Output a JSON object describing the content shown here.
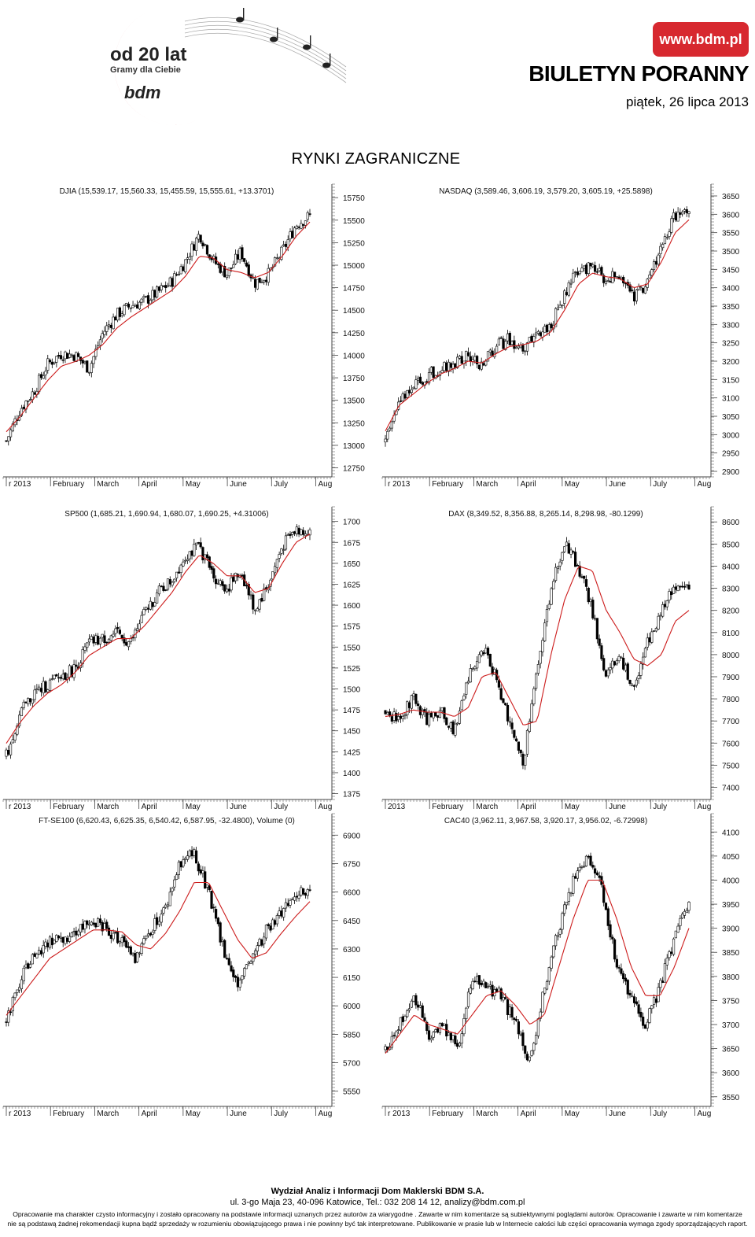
{
  "header": {
    "logo_main": "od 20 lat",
    "logo_tagline": "Gramy dla Ciebie",
    "logo_bdm": "bdm",
    "brand_url": "www.bdm.pl",
    "title": "BIULETYN PORANNY",
    "date": "piątek, 26 lipca 2013",
    "accent_color": "#d7282f"
  },
  "section_title": "RYNKI ZAGRANICZNE",
  "footer": {
    "org": "Wydział Analiz i Informacji Dom Maklerski BDM  S.A.",
    "address": "ul. 3-go Maja 23, 40-096 Katowice, Tel.: 032 208 14 12, analizy@bdm.com.pl",
    "disclaimer_1": "Opracowanie  ma charakter czysto informacyjny i zostało opracowany na podstawie informacji uznanych przez autorów za wiarygodne . Zawarte w nim komentarze są subiektywnymi poglądami autorów. Opracowanie i zawarte w nim komentarze",
    "disclaimer_2": "nie są podstawą żadnej rekomendacji kupna bądź sprzedaży w rozumieniu obowiązującego prawa i nie powinny być tak interpretowane. Publikowanie w prasie lub w Internecie całości lub części opracowania wymaga zgody sporządzających raport."
  },
  "chart_data": [
    {
      "type": "candlestick",
      "title": "DJIA (15,539.17, 15,560.33, 15,455.59, 15,555.61, +13.3701)",
      "months": [
        "r 2013",
        "February",
        "March",
        "April",
        "May",
        "June",
        "July",
        "Aug"
      ],
      "yticks": [
        15750,
        15500,
        15250,
        15000,
        14750,
        14500,
        14250,
        14000,
        13750,
        13500,
        13250,
        13000,
        12750
      ],
      "ylim": [
        12650,
        15830
      ],
      "series": [
        {
          "values": [
            13050,
            13400,
            13600,
            13900,
            14020,
            14000,
            13850,
            14250,
            14450,
            14550,
            14600,
            14700,
            14820,
            15050,
            15350,
            15050,
            14900,
            15150,
            14800,
            14900,
            15150,
            15450,
            15550
          ]
        },
        {
          "values": [
            13150,
            13320,
            13520,
            13720,
            13880,
            13930,
            14000,
            14120,
            14300,
            14420,
            14520,
            14620,
            14720,
            14880,
            15100,
            15080,
            14950,
            14920,
            14860,
            14920,
            15100,
            15320,
            15480
          ]
        }
      ]
    },
    {
      "type": "candlestick",
      "title": "NASDAQ (3,589.46, 3,606.19, 3,579.20, 3,605.19, +25.5898)",
      "months": [
        "r 2013",
        "February",
        "March",
        "April",
        "May",
        "June",
        "July",
        "Aug"
      ],
      "yticks": [
        3650,
        3600,
        3550,
        3500,
        3450,
        3400,
        3350,
        3300,
        3250,
        3200,
        3150,
        3100,
        3050,
        3000,
        2950,
        2900
      ],
      "ylim": [
        2885,
        3665
      ],
      "series": [
        {
          "values": [
            2980,
            3100,
            3130,
            3160,
            3180,
            3195,
            3215,
            3190,
            3240,
            3260,
            3230,
            3270,
            3300,
            3380,
            3450,
            3460,
            3420,
            3440,
            3370,
            3420,
            3510,
            3600,
            3605
          ]
        },
        {
          "values": [
            3010,
            3080,
            3110,
            3140,
            3165,
            3180,
            3200,
            3195,
            3220,
            3240,
            3245,
            3255,
            3280,
            3340,
            3410,
            3440,
            3430,
            3425,
            3400,
            3410,
            3470,
            3550,
            3585
          ]
        }
      ]
    },
    {
      "type": "candlestick",
      "title": "SP500 (1,685.21, 1,690.94, 1,680.07, 1,690.25, +4.31006)",
      "months": [
        "r 2013",
        "February",
        "March",
        "April",
        "May",
        "June",
        "July",
        "Aug"
      ],
      "yticks": [
        1700,
        1675,
        1650,
        1625,
        1600,
        1575,
        1550,
        1525,
        1500,
        1475,
        1450,
        1425,
        1400,
        1375
      ],
      "ylim": [
        1368,
        1710
      ],
      "series": [
        {
          "values": [
            1420,
            1470,
            1495,
            1505,
            1515,
            1525,
            1555,
            1560,
            1565,
            1555,
            1590,
            1615,
            1630,
            1660,
            1670,
            1635,
            1620,
            1640,
            1595,
            1625,
            1670,
            1690,
            1690
          ]
        },
        {
          "values": [
            1435,
            1460,
            1480,
            1495,
            1505,
            1520,
            1540,
            1550,
            1560,
            1560,
            1575,
            1595,
            1615,
            1640,
            1660,
            1650,
            1635,
            1635,
            1615,
            1620,
            1650,
            1675,
            1685
          ]
        }
      ]
    },
    {
      "type": "candlestick",
      "title": "DAX (8,349.52, 8,356.88, 8,265.14, 8,298.98, -80.1299)",
      "months": [
        "2013",
        "February",
        "March",
        "April",
        "May",
        "June",
        "July",
        "Aug"
      ],
      "yticks": [
        8600,
        8500,
        8400,
        8300,
        8200,
        8100,
        8000,
        7900,
        7800,
        7700,
        7600,
        7500,
        7400
      ],
      "ylim": [
        7345,
        8640
      ],
      "series": [
        {
          "values": [
            7750,
            7700,
            7800,
            7700,
            7750,
            7650,
            7900,
            8050,
            7900,
            7700,
            7500,
            7950,
            8300,
            8500,
            8400,
            8200,
            7900,
            8000,
            7850,
            8050,
            8200,
            8300,
            8300
          ]
        },
        {
          "values": [
            7720,
            7730,
            7750,
            7740,
            7740,
            7720,
            7760,
            7900,
            7920,
            7800,
            7680,
            7700,
            8000,
            8250,
            8400,
            8380,
            8200,
            8100,
            7980,
            7950,
            8000,
            8150,
            8200
          ]
        }
      ]
    },
    {
      "type": "candlestick",
      "title": "FT-SE100 (6,620.43, 6,625.35, 6,540.42, 6,587.95, -32.4800), Volume (0)",
      "months": [
        "r 2013",
        "February",
        "March",
        "April",
        "May",
        "June",
        "July",
        "Aug"
      ],
      "yticks": [
        6900,
        6750,
        6600,
        6450,
        6300,
        6150,
        6000,
        5850,
        5700,
        5550
      ],
      "ylim": [
        5470,
        6980
      ],
      "series": [
        {
          "values": [
            5920,
            6150,
            6280,
            6330,
            6360,
            6400,
            6450,
            6400,
            6350,
            6250,
            6400,
            6500,
            6750,
            6800,
            6600,
            6300,
            6100,
            6250,
            6400,
            6500,
            6600,
            6620
          ]
        },
        {
          "values": [
            5950,
            6050,
            6150,
            6250,
            6300,
            6350,
            6400,
            6400,
            6390,
            6320,
            6300,
            6380,
            6500,
            6650,
            6650,
            6500,
            6350,
            6250,
            6280,
            6380,
            6470,
            6550
          ]
        }
      ]
    },
    {
      "type": "candlestick",
      "title": "CAC40 (3,962.11, 3,967.58, 3,920.17, 3,956.02, -6.72998)",
      "months": [
        "r 2013",
        "February",
        "March",
        "April",
        "May",
        "June",
        "July",
        "Aug"
      ],
      "yticks": [
        4100,
        4050,
        4000,
        3950,
        3900,
        3850,
        3800,
        3750,
        3700,
        3650,
        3600,
        3550
      ],
      "ylim": [
        3530,
        4125
      ],
      "series": [
        {
          "values": [
            3650,
            3700,
            3760,
            3680,
            3700,
            3650,
            3800,
            3780,
            3760,
            3700,
            3620,
            3780,
            3900,
            4000,
            4050,
            3980,
            3820,
            3750,
            3700,
            3780,
            3880,
            3960
          ]
        },
        {
          "values": [
            3640,
            3680,
            3720,
            3700,
            3690,
            3680,
            3720,
            3760,
            3770,
            3740,
            3700,
            3720,
            3820,
            3920,
            4000,
            4000,
            3920,
            3820,
            3760,
            3760,
            3820,
            3900
          ]
        }
      ]
    }
  ]
}
